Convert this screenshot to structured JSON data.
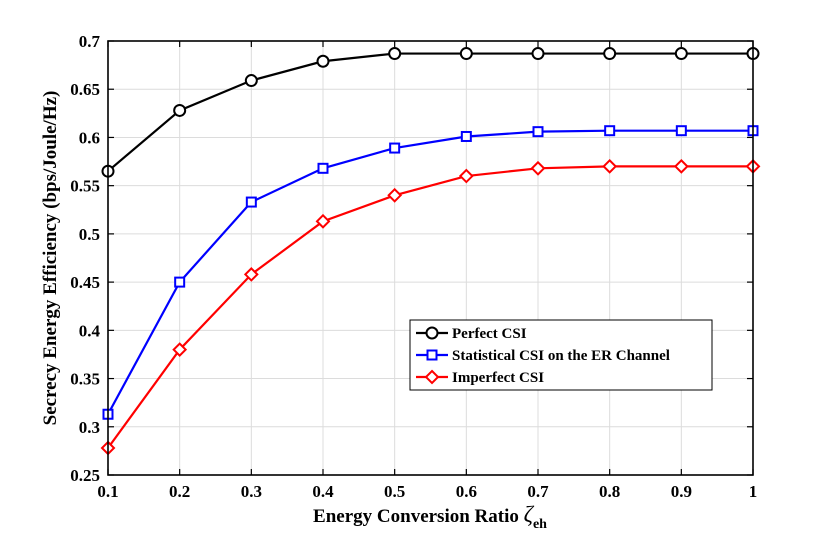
{
  "chart_data": {
    "type": "line",
    "title": "",
    "xlabel": "Energy Conversion Ratio ",
    "xlabel_symbol": "ζ",
    "xlabel_subscript": "eh",
    "ylabel": "Secrecy Energy Efficiency (bps/Joule/Hz)",
    "xlim": [
      0.1,
      1
    ],
    "ylim": [
      0.25,
      0.7
    ],
    "grid": true,
    "legend_position": "center-right",
    "x": [
      0.1,
      0.2,
      0.3,
      0.4,
      0.5,
      0.6,
      0.7,
      0.8,
      0.9,
      1.0
    ],
    "x_tick_labels": [
      "0.1",
      "0.2",
      "0.3",
      "0.4",
      "0.5",
      "0.6",
      "0.7",
      "0.8",
      "0.9",
      "1"
    ],
    "y_ticks": [
      0.25,
      0.3,
      0.35,
      0.4,
      0.45,
      0.5,
      0.55,
      0.6,
      0.65,
      0.7
    ],
    "y_tick_labels": [
      "0.25",
      "0.3",
      "0.35",
      "0.4",
      "0.45",
      "0.5",
      "0.55",
      "0.6",
      "0.65",
      "0.7"
    ],
    "series": [
      {
        "name": "Perfect CSI",
        "color": "#000000",
        "marker": "circle",
        "values": [
          0.565,
          0.628,
          0.659,
          0.679,
          0.687,
          0.687,
          0.687,
          0.687,
          0.687,
          0.687
        ]
      },
      {
        "name": "Statistical CSI on the ER Channel",
        "color": "#0000ff",
        "marker": "square",
        "values": [
          0.313,
          0.45,
          0.533,
          0.568,
          0.589,
          0.601,
          0.606,
          0.607,
          0.607,
          0.607
        ]
      },
      {
        "name": "Imperfect CSI",
        "color": "#ff0000",
        "marker": "diamond",
        "values": [
          0.278,
          0.38,
          0.458,
          0.513,
          0.54,
          0.56,
          0.568,
          0.57,
          0.57,
          0.57
        ]
      }
    ]
  }
}
